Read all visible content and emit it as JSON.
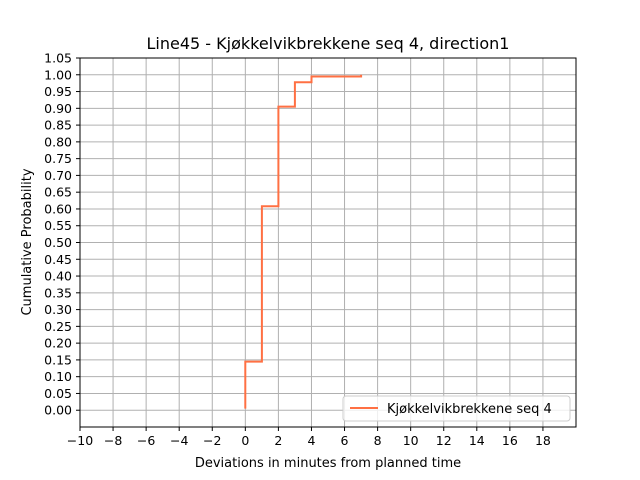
{
  "chart_data": {
    "type": "line",
    "step": "post",
    "title": "Line45 - Kjøkkelvikbrekkene seq 4, direction1",
    "xlabel": "Deviations in minutes from planned time",
    "ylabel": "Cumulative Probability",
    "xlim": [
      -10,
      20
    ],
    "ylim": [
      -0.05,
      1.05
    ],
    "xticks": [
      -10,
      -8,
      -6,
      -4,
      -2,
      0,
      2,
      4,
      6,
      8,
      10,
      12,
      14,
      16,
      18
    ],
    "yticks": [
      0.0,
      0.05,
      0.1,
      0.15,
      0.2,
      0.25,
      0.3,
      0.35,
      0.4,
      0.45,
      0.5,
      0.55,
      0.6,
      0.65,
      0.7,
      0.75,
      0.8,
      0.85,
      0.9,
      0.95,
      1.0,
      1.05
    ],
    "grid": true,
    "legend_position": "lower-right",
    "series": [
      {
        "name": "Kjøkkelvikbrekkene seq 4",
        "color": "#ff7043",
        "x": [
          0,
          0,
          1,
          2,
          3,
          4,
          7
        ],
        "y": [
          0.005,
          0.145,
          0.608,
          0.905,
          0.978,
          0.995,
          1.0
        ]
      }
    ]
  }
}
